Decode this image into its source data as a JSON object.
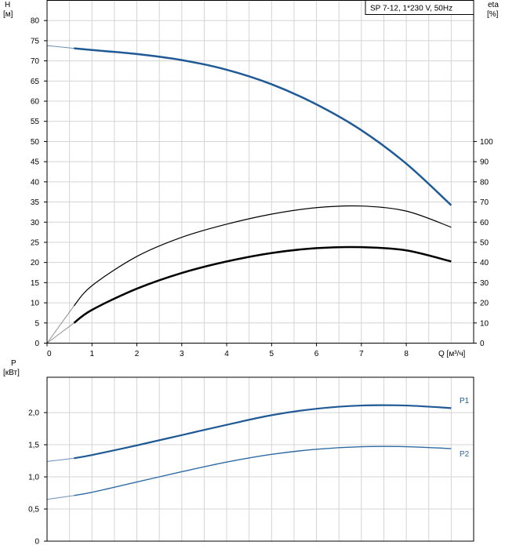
{
  "chart_data": [
    {
      "type": "line",
      "title": "SP 7-12, 1*230 V, 50Hz",
      "xlabel": "Q [м³/ч]",
      "ylabel_lines": [
        "H",
        "[м]"
      ],
      "y2label_lines": [
        "eta",
        "[%]"
      ],
      "x_ticks": [
        0,
        1,
        2,
        3,
        4,
        5,
        6,
        7,
        8
      ],
      "y_ticks": [
        0,
        5,
        10,
        15,
        20,
        25,
        30,
        35,
        40,
        45,
        50,
        55,
        60,
        65,
        70,
        75,
        80
      ],
      "y2_ticks": [
        0,
        10,
        20,
        30,
        40,
        50,
        60,
        70,
        80,
        90,
        100
      ],
      "xlim": [
        0,
        9.5
      ],
      "ylim": [
        0,
        85
      ],
      "y2lim": [
        0,
        170
      ],
      "grid": true,
      "series": [
        {
          "axis": "left",
          "color": "#1f5a96",
          "width": 2.5,
          "extension": {
            "x": [
              0,
              0.6
            ],
            "y": [
              73.8,
              73.1
            ],
            "color": "#6b8fb8"
          },
          "x": [
            0.6,
            1,
            2,
            3,
            4,
            5,
            6,
            7,
            8,
            9
          ],
          "y": [
            73.1,
            72.7,
            71.7,
            70.2,
            67.8,
            64.2,
            59.2,
            52.8,
            44.5,
            34.2
          ]
        },
        {
          "axis": "right",
          "color": "#000000",
          "width": 1.2,
          "extension": {
            "x": [
              0,
              0.6
            ],
            "y": [
              0,
              18.5
            ],
            "color": "#909090"
          },
          "x": [
            0.6,
            1,
            2,
            3,
            4,
            5,
            6,
            7,
            8,
            9
          ],
          "y": [
            18.5,
            28.5,
            43,
            52.5,
            59,
            64,
            67.2,
            68,
            65.5,
            57.5
          ]
        },
        {
          "axis": "right",
          "color": "#000000",
          "width": 2.5,
          "extension": {
            "x": [
              0,
              0.6
            ],
            "y": [
              0,
              10
            ],
            "color": "#909090"
          },
          "x": [
            0.6,
            1,
            2,
            3,
            4,
            5,
            6,
            7,
            8,
            9
          ],
          "y": [
            10,
            16.5,
            27,
            34.8,
            40.5,
            44.7,
            47.1,
            47.6,
            46,
            40.5
          ]
        }
      ]
    },
    {
      "type": "line",
      "ylabel_lines": [
        "P",
        "[кВт]"
      ],
      "y_ticks": [
        "0",
        "0,5",
        "1,0",
        "1,5",
        "2,0"
      ],
      "y_tick_values": [
        0,
        0.5,
        1.0,
        1.5,
        2.0
      ],
      "xlim": [
        0,
        9.5
      ],
      "ylim": [
        0,
        2.55
      ],
      "grid": true,
      "series": [
        {
          "name": "P1",
          "color": "#1f5a96",
          "width": 2.2,
          "extension": {
            "x": [
              0,
              0.6
            ],
            "y": [
              1.24,
              1.29
            ],
            "color": "#6b8fb8"
          },
          "x": [
            0.6,
            1,
            2,
            3,
            4,
            5,
            6,
            7,
            8,
            9
          ],
          "y": [
            1.29,
            1.34,
            1.49,
            1.65,
            1.81,
            1.96,
            2.06,
            2.11,
            2.11,
            2.07
          ]
        },
        {
          "name": "P2",
          "color": "#2f6aa3",
          "width": 1.4,
          "extension": {
            "x": [
              0,
              0.6
            ],
            "y": [
              0.65,
              0.71
            ],
            "color": "#6b8fb8"
          },
          "x": [
            0.6,
            1,
            2,
            3,
            4,
            5,
            6,
            7,
            8,
            9
          ],
          "y": [
            0.71,
            0.76,
            0.92,
            1.08,
            1.23,
            1.35,
            1.43,
            1.47,
            1.47,
            1.44
          ]
        }
      ]
    }
  ]
}
